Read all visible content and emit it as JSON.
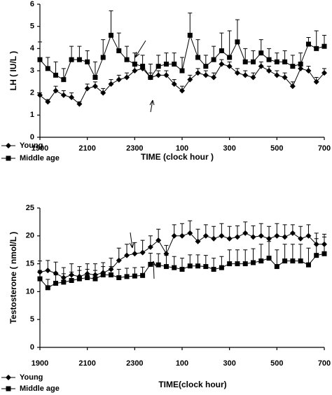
{
  "chart_data": [
    {
      "type": "line",
      "ylabel": "LH ( IU/L )",
      "xlabel": "TIME (clock hour )",
      "categories": [
        "1900",
        null,
        null,
        null,
        null,
        null,
        "2100",
        null,
        null,
        null,
        null,
        null,
        "2300",
        null,
        null,
        null,
        null,
        null,
        "100",
        null,
        null,
        null,
        null,
        null,
        "300",
        null,
        null,
        null,
        null,
        null,
        "500",
        null,
        null,
        null,
        null,
        null,
        "700"
      ],
      "ylim": [
        0,
        6
      ],
      "yticks": [
        0,
        1,
        2,
        3,
        4,
        5,
        6
      ],
      "series": [
        {
          "name": "Young",
          "color": "#000000",
          "marker": "diamond",
          "values": [
            1.9,
            1.6,
            2.1,
            1.9,
            1.8,
            1.5,
            2.2,
            2.3,
            2.0,
            2.4,
            2.6,
            2.7,
            3.0,
            3.1,
            2.7,
            2.8,
            2.8,
            2.4,
            2.1,
            2.6,
            2.9,
            2.8,
            2.7,
            3.3,
            3.2,
            2.9,
            2.8,
            2.7,
            3.2,
            3.0,
            2.8,
            2.7,
            2.3,
            3.1,
            3.0,
            2.5,
            2.9
          ],
          "errors": [
            0.1,
            0.1,
            0.2,
            0.2,
            0.2,
            0.1,
            0.2,
            0.2,
            0.2,
            0.2,
            0.2,
            0.2,
            0.2,
            0.2,
            0.2,
            0.2,
            0.2,
            0.2,
            0.2,
            0.2,
            0.2,
            0.2,
            0.2,
            0.2,
            0.2,
            0.2,
            0.2,
            0.2,
            0.2,
            0.2,
            0.2,
            0.2,
            0.2,
            0.2,
            0.2,
            0.2,
            0.2
          ]
        },
        {
          "name": "Middle age",
          "color": "#000000",
          "marker": "square",
          "values": [
            3.5,
            3.1,
            2.8,
            2.6,
            3.5,
            3.5,
            3.4,
            2.7,
            3.6,
            4.6,
            3.9,
            3.5,
            3.3,
            3.2,
            2.7,
            3.2,
            3.3,
            3.3,
            3.0,
            4.6,
            3.6,
            3.2,
            3.5,
            3.9,
            3.6,
            4.3,
            3.4,
            3.4,
            3.8,
            3.5,
            3.4,
            3.4,
            3.2,
            3.3,
            4.2,
            4.0,
            4.1
          ],
          "errors": [
            0.8,
            0.5,
            0.6,
            0.5,
            0.6,
            0.6,
            0.5,
            0.7,
            0.8,
            1.1,
            0.8,
            0.6,
            0.5,
            0.5,
            0.6,
            0.5,
            0.5,
            0.5,
            0.6,
            1.0,
            0.8,
            0.5,
            0.6,
            0.8,
            1.2,
            1.0,
            0.6,
            0.5,
            0.6,
            0.5,
            0.4,
            0.5,
            0.5,
            0.5,
            0.3,
            0.8,
            0.5
          ]
        }
      ]
    },
    {
      "type": "line",
      "ylabel": "Testosterone ( nmol/L )",
      "xlabel": "TIME(clock hour)",
      "categories": [
        "1900",
        null,
        null,
        null,
        null,
        null,
        "2100",
        null,
        null,
        null,
        null,
        null,
        "2300",
        null,
        null,
        null,
        null,
        null,
        "100",
        null,
        null,
        null,
        null,
        null,
        "300",
        null,
        null,
        null,
        null,
        null,
        "500",
        null,
        null,
        null,
        null,
        null,
        "700"
      ],
      "ylim": [
        0,
        25
      ],
      "yticks": [
        0,
        5,
        10,
        15,
        20,
        25
      ],
      "series": [
        {
          "name": "Young",
          "color": "#000000",
          "marker": "diamond",
          "values": [
            13.5,
            13.8,
            13.3,
            12.5,
            13.0,
            12.7,
            13.2,
            13.0,
            13.4,
            14.0,
            15.6,
            16.5,
            16.8,
            17.0,
            18.0,
            19.2,
            16.8,
            20.0,
            20.0,
            20.5,
            19.0,
            20.0,
            19.5,
            20.0,
            19.5,
            19.8,
            20.5,
            19.8,
            20.0,
            19.5,
            20.0,
            19.8,
            20.5,
            19.5,
            20.0,
            18.5,
            18.5
          ],
          "errors": [
            2.0,
            1.8,
            2.0,
            1.8,
            2.0,
            1.8,
            1.8,
            2.0,
            1.8,
            2.0,
            2.2,
            2.0,
            2.0,
            2.2,
            2.0,
            2.0,
            1.5,
            2.0,
            2.2,
            2.2,
            2.2,
            2.0,
            2.2,
            2.2,
            2.2,
            2.0,
            2.0,
            2.0,
            2.2,
            2.2,
            2.2,
            2.2,
            1.5,
            2.2,
            2.0,
            2.0,
            1.8
          ]
        },
        {
          "name": "Middle age",
          "color": "#000000",
          "marker": "square",
          "values": [
            12.3,
            10.7,
            11.5,
            11.7,
            12.0,
            12.3,
            12.5,
            12.3,
            13.0,
            13.0,
            12.5,
            12.7,
            12.8,
            12.9,
            14.9,
            14.8,
            14.5,
            14.3,
            14.0,
            14.6,
            14.6,
            14.5,
            14.0,
            14.3,
            15.0,
            15.0,
            15.0,
            15.2,
            15.5,
            16.0,
            14.5,
            15.5,
            15.5,
            15.5,
            14.8,
            16.5,
            16.8
          ],
          "errors": [
            1.5,
            1.5,
            1.5,
            1.5,
            1.5,
            1.5,
            1.5,
            1.5,
            1.5,
            1.5,
            1.5,
            1.5,
            1.5,
            1.5,
            2.0,
            2.0,
            2.0,
            2.0,
            2.0,
            2.0,
            2.0,
            2.0,
            2.0,
            2.0,
            2.5,
            2.5,
            2.5,
            2.5,
            3.0,
            3.0,
            3.0,
            3.0,
            3.0,
            3.0,
            3.0,
            3.0,
            3.0
          ]
        }
      ]
    }
  ]
}
